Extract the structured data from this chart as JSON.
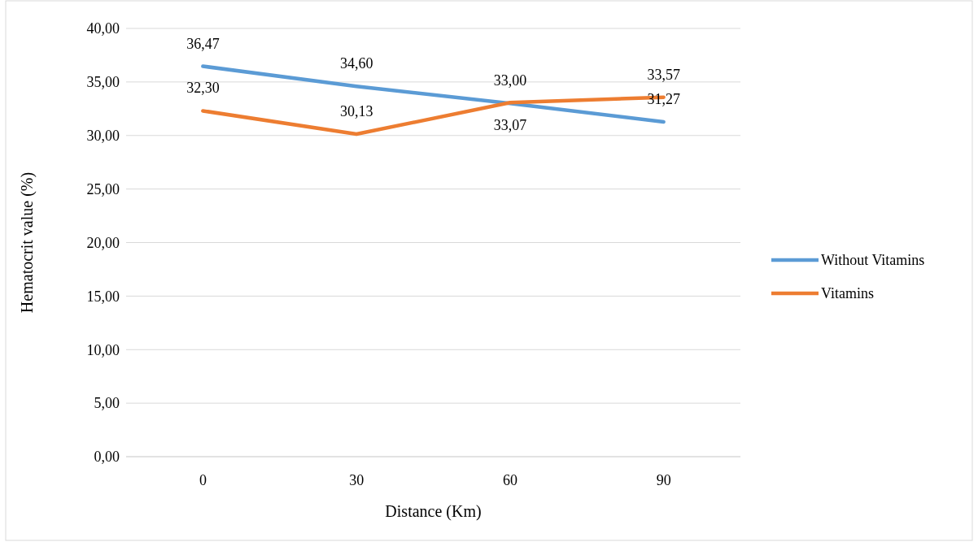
{
  "chart_data": {
    "type": "line",
    "xlabel": "Distance (Km)",
    "ylabel": "Hematocrit value (%)",
    "categories": [
      "0",
      "30",
      "60",
      "90"
    ],
    "series": [
      {
        "name": "Without Vitamins",
        "color": "#5b9bd5",
        "values": [
          36.47,
          34.6,
          33.0,
          31.27
        ],
        "value_labels": [
          "36,47",
          "34,60",
          "33,00",
          "31,27"
        ]
      },
      {
        "name": "Vitamins",
        "color": "#ed7d31",
        "values": [
          32.3,
          30.13,
          33.07,
          33.57
        ],
        "value_labels": [
          "32,30",
          "30,13",
          "33,07",
          "33,57"
        ]
      }
    ],
    "ylim": [
      0,
      40
    ],
    "yticks": [
      {
        "value": 0,
        "label": "0,00"
      },
      {
        "value": 5,
        "label": "5,00"
      },
      {
        "value": 10,
        "label": "10,00"
      },
      {
        "value": 15,
        "label": "15,00"
      },
      {
        "value": 20,
        "label": "20,00"
      },
      {
        "value": 25,
        "label": "25,00"
      },
      {
        "value": 30,
        "label": "30,00"
      },
      {
        "value": 35,
        "label": "35,00"
      },
      {
        "value": 40,
        "label": "40,00"
      }
    ],
    "grid": "y",
    "legend": "right",
    "marker": "none",
    "line_style": "solid"
  }
}
